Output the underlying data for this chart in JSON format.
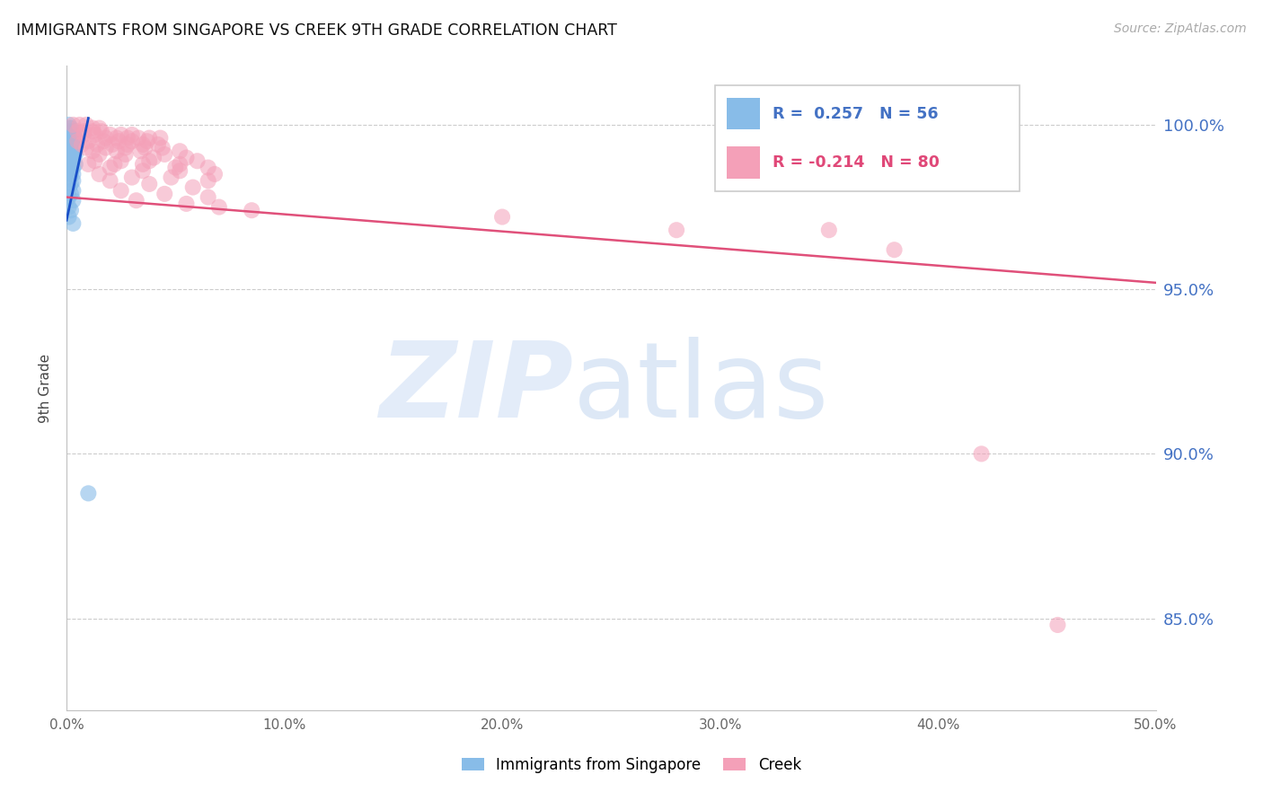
{
  "title": "IMMIGRANTS FROM SINGAPORE VS CREEK 9TH GRADE CORRELATION CHART",
  "source": "Source: ZipAtlas.com",
  "ylabel": "9th Grade",
  "ytick_labels": [
    "100.0%",
    "95.0%",
    "90.0%",
    "85.0%"
  ],
  "ytick_values": [
    1.0,
    0.95,
    0.9,
    0.85
  ],
  "xtick_labels": [
    "0.0%",
    "10.0%",
    "20.0%",
    "30.0%",
    "40.0%",
    "50.0%"
  ],
  "xtick_values": [
    0.0,
    0.1,
    0.2,
    0.3,
    0.4,
    0.5
  ],
  "xlim": [
    0.0,
    0.5
  ],
  "ylim": [
    0.822,
    1.018
  ],
  "color_blue": "#88bce8",
  "color_pink": "#f4a0b8",
  "trendline_blue": "#1a50c8",
  "trendline_pink": "#e0507a",
  "blue_R": 0.257,
  "blue_N": 56,
  "pink_R": -0.214,
  "pink_N": 80,
  "blue_trendline": [
    [
      0.0,
      0.971
    ],
    [
      0.01,
      1.002
    ]
  ],
  "pink_trendline": [
    [
      0.0,
      0.978
    ],
    [
      0.5,
      0.952
    ]
  ],
  "blue_scatter_x": [
    0.001,
    0.001,
    0.002,
    0.001,
    0.003,
    0.002,
    0.001,
    0.003,
    0.002,
    0.001,
    0.003,
    0.004,
    0.001,
    0.002,
    0.004,
    0.001,
    0.003,
    0.002,
    0.004,
    0.001,
    0.002,
    0.003,
    0.001,
    0.002,
    0.003,
    0.001,
    0.004,
    0.002,
    0.001,
    0.003,
    0.002,
    0.001,
    0.003,
    0.002,
    0.001,
    0.004,
    0.002,
    0.001,
    0.003,
    0.002,
    0.001,
    0.003,
    0.002,
    0.001,
    0.003,
    0.002,
    0.001,
    0.003,
    0.002,
    0.001,
    0.003,
    0.001,
    0.002,
    0.001,
    0.003,
    0.01
  ],
  "blue_scatter_y": [
    1.0,
    0.999,
    0.999,
    0.998,
    0.998,
    0.997,
    0.997,
    0.997,
    0.996,
    0.996,
    0.996,
    0.996,
    0.995,
    0.995,
    0.995,
    0.994,
    0.994,
    0.994,
    0.994,
    0.993,
    0.993,
    0.993,
    0.992,
    0.992,
    0.992,
    0.991,
    0.991,
    0.991,
    0.99,
    0.99,
    0.99,
    0.989,
    0.989,
    0.988,
    0.988,
    0.988,
    0.987,
    0.987,
    0.987,
    0.986,
    0.986,
    0.985,
    0.985,
    0.984,
    0.983,
    0.982,
    0.981,
    0.98,
    0.979,
    0.978,
    0.977,
    0.975,
    0.974,
    0.972,
    0.97,
    0.888
  ],
  "pink_scatter_x": [
    0.003,
    0.006,
    0.009,
    0.012,
    0.015,
    0.005,
    0.008,
    0.012,
    0.016,
    0.02,
    0.025,
    0.03,
    0.008,
    0.013,
    0.018,
    0.023,
    0.028,
    0.033,
    0.038,
    0.043,
    0.005,
    0.01,
    0.017,
    0.024,
    0.03,
    0.037,
    0.007,
    0.014,
    0.021,
    0.028,
    0.035,
    0.042,
    0.009,
    0.018,
    0.027,
    0.036,
    0.044,
    0.052,
    0.012,
    0.023,
    0.034,
    0.045,
    0.015,
    0.027,
    0.04,
    0.055,
    0.06,
    0.013,
    0.025,
    0.038,
    0.052,
    0.01,
    0.022,
    0.035,
    0.05,
    0.065,
    0.02,
    0.035,
    0.052,
    0.068,
    0.015,
    0.03,
    0.048,
    0.065,
    0.02,
    0.038,
    0.058,
    0.025,
    0.045,
    0.065,
    0.032,
    0.055,
    0.07,
    0.085,
    0.2,
    0.35,
    0.42,
    0.455,
    0.28,
    0.38
  ],
  "pink_scatter_y": [
    1.0,
    1.0,
    1.0,
    0.999,
    0.999,
    0.998,
    0.998,
    0.998,
    0.998,
    0.997,
    0.997,
    0.997,
    0.997,
    0.997,
    0.996,
    0.996,
    0.996,
    0.996,
    0.996,
    0.996,
    0.995,
    0.995,
    0.995,
    0.995,
    0.995,
    0.995,
    0.994,
    0.994,
    0.994,
    0.994,
    0.994,
    0.994,
    0.993,
    0.993,
    0.993,
    0.993,
    0.993,
    0.992,
    0.992,
    0.992,
    0.992,
    0.991,
    0.991,
    0.991,
    0.99,
    0.99,
    0.989,
    0.989,
    0.989,
    0.989,
    0.988,
    0.988,
    0.988,
    0.988,
    0.987,
    0.987,
    0.987,
    0.986,
    0.986,
    0.985,
    0.985,
    0.984,
    0.984,
    0.983,
    0.983,
    0.982,
    0.981,
    0.98,
    0.979,
    0.978,
    0.977,
    0.976,
    0.975,
    0.974,
    0.972,
    0.968,
    0.9,
    0.848,
    0.968,
    0.962
  ]
}
